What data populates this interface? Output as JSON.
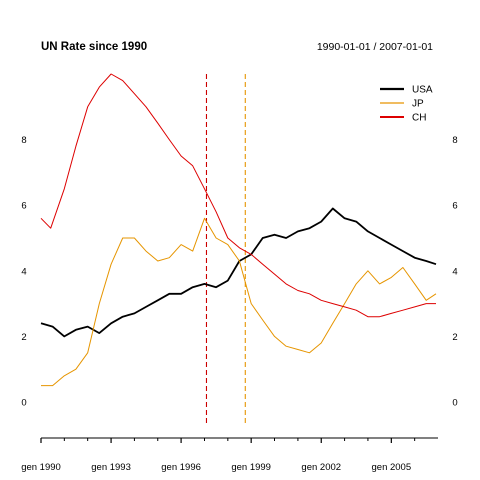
{
  "chart_data": {
    "type": "line",
    "title": "UN Rate since 1990",
    "date_range": "1990-01-01 / 2007-01-01",
    "xlabel": "",
    "ylabel": "",
    "ylim": [
      -1,
      10
    ],
    "yticks": [
      0,
      2,
      4,
      6,
      8
    ],
    "y_axis_sides": [
      "left",
      "right"
    ],
    "xticks": [
      {
        "date": "1990-01-01",
        "label": "gen 1990"
      },
      {
        "date": "1993-01-01",
        "label": "gen 1993"
      },
      {
        "date": "1996-01-01",
        "label": "gen 1996"
      },
      {
        "date": "1999-01-01",
        "label": "gen 1999"
      },
      {
        "date": "2002-01-01",
        "label": "gen 2002"
      },
      {
        "date": "2005-01-01",
        "label": "gen 2005"
      }
    ],
    "minor_xticks": [
      "1991-01-01",
      "1992-01-01",
      "1994-01-01",
      "1995-01-01",
      "1997-01-01",
      "1998-01-01",
      "2000-01-01",
      "2001-01-01",
      "2003-01-01",
      "2004-01-01",
      "2006-01-01"
    ],
    "grid": false,
    "legend_position": "top-right",
    "vlines": [
      {
        "date": "1997-02-01",
        "color": "#cc0000",
        "style": "dashed"
      },
      {
        "date": "1998-10-01",
        "color": "#e69500",
        "style": "dashed"
      }
    ],
    "series": [
      {
        "name": "USA",
        "color": "#000000",
        "x": [
          "1990-01-01",
          "1990-07-01",
          "1991-01-01",
          "1991-07-01",
          "1992-01-01",
          "1992-07-01",
          "1993-01-01",
          "1993-07-01",
          "1994-01-01",
          "1994-07-01",
          "1995-01-01",
          "1995-07-01",
          "1996-01-01",
          "1996-07-01",
          "1997-01-01",
          "1997-07-01",
          "1998-01-01",
          "1998-07-01",
          "1999-01-01",
          "1999-07-01",
          "2000-01-01",
          "2000-07-01",
          "2001-01-01",
          "2001-07-01",
          "2002-01-01",
          "2002-07-01",
          "2003-01-01",
          "2003-07-01",
          "2004-01-01",
          "2004-07-01",
          "2005-01-01",
          "2005-07-01",
          "2006-01-01",
          "2006-07-01",
          "2006-12-01"
        ],
        "values": [
          2.4,
          2.3,
          2.0,
          2.2,
          2.3,
          2.1,
          2.4,
          2.6,
          2.7,
          2.9,
          3.1,
          3.3,
          3.3,
          3.5,
          3.6,
          3.5,
          3.7,
          4.3,
          4.5,
          5.0,
          5.1,
          5.0,
          5.2,
          5.3,
          5.5,
          5.9,
          5.6,
          5.5,
          5.2,
          5.0,
          4.8,
          4.6,
          4.4,
          4.3,
          4.2
        ]
      },
      {
        "name": "JP",
        "color": "#e69500",
        "x": [
          "1990-01-01",
          "1990-07-01",
          "1991-01-01",
          "1991-07-01",
          "1992-01-01",
          "1992-07-01",
          "1993-01-01",
          "1993-07-01",
          "1994-01-01",
          "1994-07-01",
          "1995-01-01",
          "1995-07-01",
          "1996-01-01",
          "1996-07-01",
          "1997-01-01",
          "1997-07-01",
          "1998-01-01",
          "1998-07-01",
          "1999-01-01",
          "1999-07-01",
          "2000-01-01",
          "2000-07-01",
          "2001-01-01",
          "2001-07-01",
          "2002-01-01",
          "2002-07-01",
          "2003-01-01",
          "2003-07-01",
          "2004-01-01",
          "2004-07-01",
          "2005-01-01",
          "2005-07-01",
          "2006-01-01",
          "2006-07-01",
          "2006-12-01"
        ],
        "values": [
          0.5,
          0.5,
          0.8,
          1.0,
          1.5,
          3.0,
          4.2,
          5.0,
          5.0,
          4.6,
          4.3,
          4.4,
          4.8,
          4.6,
          5.6,
          5.0,
          4.8,
          4.3,
          3.0,
          2.5,
          2.0,
          1.7,
          1.6,
          1.5,
          1.8,
          2.4,
          3.0,
          3.6,
          4.0,
          3.6,
          3.8,
          4.1,
          3.6,
          3.1,
          3.3
        ]
      },
      {
        "name": "CH",
        "color": "#dd0000",
        "x": [
          "1990-01-01",
          "1990-06-01",
          "1991-01-01",
          "1991-07-01",
          "1992-01-01",
          "1992-07-01",
          "1993-01-01",
          "1993-07-01",
          "1994-01-01",
          "1994-07-01",
          "1995-01-01",
          "1995-07-01",
          "1996-01-01",
          "1996-07-01",
          "1997-01-01",
          "1997-07-01",
          "1998-01-01",
          "1998-07-01",
          "1999-01-01",
          "1999-07-01",
          "2000-01-01",
          "2000-07-01",
          "2001-01-01",
          "2001-07-01",
          "2002-01-01",
          "2002-07-01",
          "2003-01-01",
          "2003-07-01",
          "2004-01-01",
          "2004-07-01",
          "2005-01-01",
          "2005-07-01",
          "2006-01-01",
          "2006-07-01",
          "2006-12-01"
        ],
        "values": [
          5.6,
          5.3,
          6.5,
          7.8,
          9.0,
          9.6,
          10.0,
          9.8,
          9.4,
          9.0,
          8.5,
          8.0,
          7.5,
          7.2,
          6.5,
          5.8,
          5.0,
          4.7,
          4.5,
          4.2,
          3.9,
          3.6,
          3.4,
          3.3,
          3.1,
          3.0,
          2.9,
          2.8,
          2.6,
          2.6,
          2.7,
          2.8,
          2.9,
          3.0,
          3.0
        ]
      }
    ]
  }
}
